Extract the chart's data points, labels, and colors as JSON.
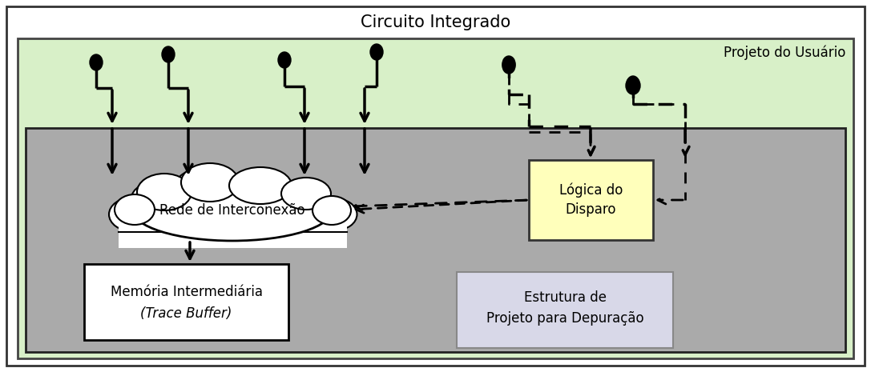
{
  "title": "Circuito Integrado",
  "outer_bg": "#ffffff",
  "outer_border": "#333333",
  "green_bg": "#d8f0c8",
  "green_border": "#444444",
  "green_label": "Projeto do Usuário",
  "gray_bg": "#aaaaaa",
  "gray_border": "#222222",
  "cloud_color": "#ffffff",
  "cloud_label": "Rede de Interconexão",
  "mem_box_color": "#ffffff",
  "mem_box_border": "#000000",
  "mem_label_line1": "Memória Intermediária",
  "mem_label_line2": "(Trace Buffer)",
  "trigger_box_color": "#ffffbb",
  "trigger_box_border": "#333333",
  "trigger_label_line1": "Lógica do",
  "trigger_label_line2": "Disparo",
  "struct_box_color": "#d8d8e8",
  "struct_box_border": "#888888",
  "struct_label_line1": "Estrutura de",
  "struct_label_line2": "Projeto para Depuração",
  "font_size_title": 15,
  "font_size_label": 12,
  "font_size_green_label": 12,
  "font_size_struct": 12
}
